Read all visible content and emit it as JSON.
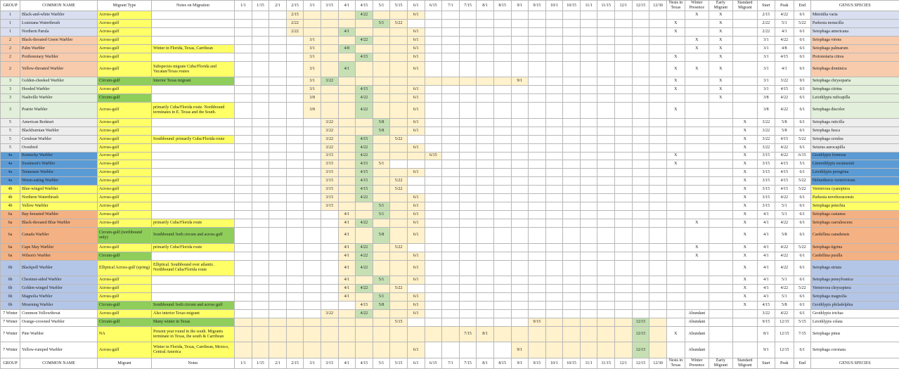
{
  "header": {
    "columns": [
      "GROUP",
      "COMMON NAME",
      "Migrant Type",
      "Notes on Migration",
      "1/1",
      "1/15",
      "2/1",
      "2/15",
      "3/1",
      "3/15",
      "4/1",
      "4/15",
      "5/1",
      "5/15",
      "6/1",
      "6/15",
      "7/1",
      "7/15",
      "8/1",
      "8/15",
      "9/1",
      "9/15",
      "10/1",
      "10/15",
      "11/1",
      "11/15",
      "12/1",
      "12/15",
      "12/30",
      "Nests in Texas",
      "Winter Presence",
      "Early Migrant",
      "Standard Migrant",
      "Start",
      "Peak",
      "End",
      "GENUS SPECIES"
    ]
  },
  "rows": [
    {
      "group": "1",
      "name": "Black-and-white Warbler",
      "migrant": "Across-gulf",
      "winter": "X",
      "early": "X",
      "start": "2/15",
      "peak": "4/22",
      "end": "6/1",
      "species": "Mniotilta varia"
    },
    {
      "group": "1",
      "name": "Louisiana Waterthrush",
      "migrant": "Across-gulf",
      "nests": "X",
      "early": "X",
      "start": "2/22",
      "peak": "5/1",
      "end": "5/22",
      "species": "Parkesia motacilla"
    },
    {
      "group": "1",
      "name": "Northern Parula",
      "migrant": "Across-gulf",
      "nests": "X",
      "early": "X",
      "start": "2/22",
      "peak": "4/1",
      "end": "6/1",
      "species": "Setophaga americana"
    },
    {
      "group": "2",
      "name": "Black-throated Green Warbler",
      "migrant": "Across-gulf",
      "winter": "X",
      "early": "X",
      "start": "3/1",
      "peak": "4/22",
      "end": "6/1",
      "species": "Setophaga virens"
    },
    {
      "group": "2",
      "name": "Palm Warbler",
      "migrant": "Across-gulf",
      "notes": "Winter in Florida, Texas, Carribean",
      "winter": "X",
      "early": "X",
      "start": "3/1",
      "peak": "4/8",
      "end": "6/1",
      "species": "Setophaga palmarum"
    },
    {
      "group": "2",
      "name": "Prothonotary Warbler",
      "migrant": "Across-gulf",
      "nests": "X",
      "early": "X",
      "start": "3/1",
      "peak": "4/15",
      "end": "6/1",
      "species": "Protonotaria citrea"
    },
    {
      "group": "2",
      "name": "Yellow-throated Warbler",
      "migrant": "Across-gulf",
      "notes": "Subspecies migrate Cuba/Florida and Yucatan/Texas routes",
      "nests": "X",
      "winter": "X",
      "early": "X",
      "start": "3/1",
      "peak": "4/1",
      "end": "6/1",
      "species": "Setophaga dominica"
    },
    {
      "group": "3",
      "name": "Golden-cheeked Warbler",
      "migrant": "Circum-gulf",
      "notes": "Interior Texas migrant",
      "nests": "X",
      "early": "X",
      "start": "3/1",
      "peak": "3/22",
      "end": "9/1",
      "species": "Setophaga chrysoparia"
    },
    {
      "group": "3",
      "name": "Hooded Warbler",
      "migrant": "Across-gulf",
      "nests": "X",
      "early": "X",
      "start": "3/1",
      "peak": "4/15",
      "end": "6/1",
      "species": "Setophaga citrina"
    },
    {
      "group": "3",
      "name": "Nashville Warbler",
      "migrant": "Circum-gulf",
      "early": "X",
      "start": "3/8",
      "peak": "4/22",
      "end": "6/1",
      "species": "Leiothlypis ruficapilla"
    },
    {
      "group": "3",
      "name": "Prairie Warbler",
      "migrant": "Across-gulf",
      "notes": "primarily Cuba/Florida route. Northbound terminates in E. Texas and the South.",
      "nests": "X",
      "start": "3/8",
      "peak": "4/22",
      "end": "6/1",
      "species": "Setophaga discolor"
    },
    {
      "group": "5",
      "name": "American Redstart",
      "migrant": "Across-gulf",
      "standard": "X",
      "start": "3/22",
      "peak": "5/8",
      "end": "6/1",
      "species": "Setophaga ruticilla"
    },
    {
      "group": "5",
      "name": "Blackburnian Warbler",
      "migrant": "Across-gulf",
      "standard": "X",
      "start": "3/22",
      "peak": "5/8",
      "end": "6/1",
      "species": "Setophaga fusca"
    },
    {
      "group": "5",
      "name": "Cerulean Warbler",
      "migrant": "Across-gulf",
      "notes": "Southbound: primarily Cuba/Florida route",
      "standard": "X",
      "start": "3/22",
      "peak": "4/15",
      "end": "5/22",
      "species": "Setophaga cerulea"
    },
    {
      "group": "5",
      "name": "Ovenbird",
      "migrant": "Across-gulf",
      "standard": "X",
      "start": "3/22",
      "peak": "4/22",
      "end": "6/1",
      "species": "Seiurus aurocapilla"
    },
    {
      "group": "4a",
      "name": "Kentucky Warbler",
      "migrant": "Across-gulf",
      "nests": "X",
      "standard": "X",
      "start": "3/15",
      "peak": "4/22",
      "end": "6/15",
      "species": "Geothlypis formosa"
    },
    {
      "group": "4a",
      "name": "Swainson's Warbler",
      "migrant": "Across-gulf",
      "nests": "X",
      "standard": "X",
      "start": "3/15",
      "peak": "4/15",
      "end": "5/1",
      "species": "Limnothlypis swainsonii"
    },
    {
      "group": "4a",
      "name": "Tennessee Warbler",
      "migrant": "Across-gulf",
      "standard": "X",
      "start": "3/15",
      "peak": "4/15",
      "end": "6/1",
      "species": "Leiothlypis peregrina"
    },
    {
      "group": "4a",
      "name": "Worm-eating Warbler",
      "migrant": "Across-gulf",
      "standard": "X",
      "start": "3/15",
      "peak": "4/15",
      "end": "5/22",
      "species": "Helmitheros vermivorum"
    },
    {
      "group": "4b",
      "name": "Blue-winged Warbler",
      "migrant": "Across-gulf",
      "standard": "X",
      "start": "3/15",
      "peak": "4/15",
      "end": "5/22",
      "species": "Vermivora cyanoptera"
    },
    {
      "group": "4b",
      "name": "Northern Waterthrush",
      "migrant": "Across-gulf",
      "standard": "X",
      "start": "3/15",
      "peak": "4/22",
      "end": "6/1",
      "species": "Parkesia noveboracensis"
    },
    {
      "group": "4b",
      "name": "Yellow Warbler",
      "migrant": "Across-gulf",
      "standard": "X",
      "start": "3/15",
      "peak": "5/1",
      "end": "6/1",
      "species": "Setophaga petechia"
    },
    {
      "group": "6a",
      "name": "Bay-breasted Warbler",
      "migrant": "Across-gulf",
      "standard": "X",
      "start": "4/1",
      "peak": "5/1",
      "end": "6/1",
      "species": "Setophaga castanea"
    },
    {
      "group": "6a",
      "name": "Black-throated Blue Warbler",
      "migrant": "Across-gulf",
      "notes": "primarily Cuba/Florida route",
      "winter": "X",
      "standard": "X",
      "start": "4/1",
      "peak": "4/22",
      "end": "6/1",
      "species": "Setophaga caerulescens"
    },
    {
      "group": "6a",
      "name": "Canada Warbler",
      "migrant": "Circum-gulf (northbound only)",
      "notes": "Southbound: both circum and across gulf",
      "standard": "X",
      "start": "4/1",
      "peak": "5/8",
      "end": "6/1",
      "species": "Cardellina canadensis"
    },
    {
      "group": "6a",
      "name": "Cape May Warbler",
      "migrant": "Across-gulf",
      "notes": "primarily Cuba/Florida route",
      "winter": "X",
      "standard": "X",
      "start": "4/1",
      "peak": "4/22",
      "end": "5/22",
      "species": "Setophaga tigrina"
    },
    {
      "group": "6a",
      "name": "Wilson's Warbler",
      "migrant": "Circum-gulf",
      "winter": "X",
      "standard": "X",
      "start": "4/1",
      "peak": "4/22",
      "end": "6/1",
      "species": "Cardellina pusilla"
    },
    {
      "group": "6b",
      "name": "Blackpoll Warbler",
      "migrant": "Elliptical Across-gulf (spring)",
      "notes": "Elliptical. Southbound over atlantic. Northbound Cuba/Florida route",
      "standard": "X",
      "start": "4/1",
      "peak": "4/22",
      "end": "6/1",
      "species": "Setophaga striata"
    },
    {
      "group": "6b",
      "name": "Chestnut-sided Warbler",
      "migrant": "Across-gulf",
      "standard": "X",
      "start": "4/1",
      "peak": "5/1",
      "end": "6/1",
      "species": "Setophaga pensylvanica"
    },
    {
      "group": "6b",
      "name": "Golden-winged Warbler",
      "migrant": "Across-gulf",
      "standard": "X",
      "start": "4/1",
      "peak": "4/22",
      "end": "5/22",
      "species": "Vermivora chrysoptera"
    },
    {
      "group": "6b",
      "name": "Magnolia Warbler",
      "migrant": "Across-gulf",
      "standard": "X",
      "start": "4/1",
      "peak": "5/1",
      "end": "6/1",
      "species": "Setophaga magnolia"
    },
    {
      "group": "6b",
      "name": "Mourning Warbler",
      "migrant": "Circum-gulf",
      "notes": "Southbound: both circum and across gulf",
      "standard": "X",
      "start": "4/15",
      "peak": "5/8",
      "end": "6/1",
      "species": "Geothlypis philadelphia"
    },
    {
      "group": "7 Winter",
      "name": "Common Yellowthroat",
      "migrant": "Across-gulf",
      "notes": "Also interior Texas migrant",
      "winter": "Abundant",
      "start": "3/22",
      "peak": "4/22",
      "end": "6/1",
      "species": "Geothlypis trichas"
    },
    {
      "group": "7 Winter",
      "name": "Orange-crowned Warbler",
      "migrant": "Circum-gulf",
      "notes": "Many winter in Texas",
      "winter": "Abundant",
      "start": "9/15",
      "peak": "12/15",
      "end": "5/15",
      "species": "Leiothlypis celata"
    },
    {
      "group": "7 Winter",
      "name": "Pine Warbler",
      "migrant": "NA",
      "notes": "Present year round in the south. Migrants terminate in Texas, the south & Carribean",
      "nests": "X",
      "winter": "Abundant",
      "start": "8/1",
      "peak": "12/15",
      "end": "7/15",
      "species": "Setophaga pinus"
    },
    {
      "group": "7 Winter",
      "name": "Yellow-rumped Warbler",
      "migrant": "Across-gulf",
      "notes": "Winter in Florida, Texas, Carribean, Mexico, Central America",
      "winter": "Abundant",
      "start": "9/1",
      "peak": "12/15",
      "end": "6/1",
      "species": "Setophaga coronata"
    }
  ],
  "footer": {
    "columns": [
      "GROUP",
      "COMMON NAME",
      "Migrant",
      "Notes",
      "1/1",
      "1/15",
      "2/1",
      "2/15",
      "3/1",
      "3/15",
      "4/1",
      "4/15",
      "5/1",
      "5/15",
      "6/1",
      "6/15",
      "7/1",
      "7/15",
      "8/1",
      "8/15",
      "9/1",
      "9/15",
      "10/1",
      "10/15",
      "11/1",
      "11/15",
      "12/1",
      "12/15",
      "12/30",
      "Nests in Texas",
      "Winter Presence",
      "Early Migrant",
      "Standard Migrant",
      "Start",
      "Peak",
      "End",
      "GENUS SPECIES"
    ]
  }
}
